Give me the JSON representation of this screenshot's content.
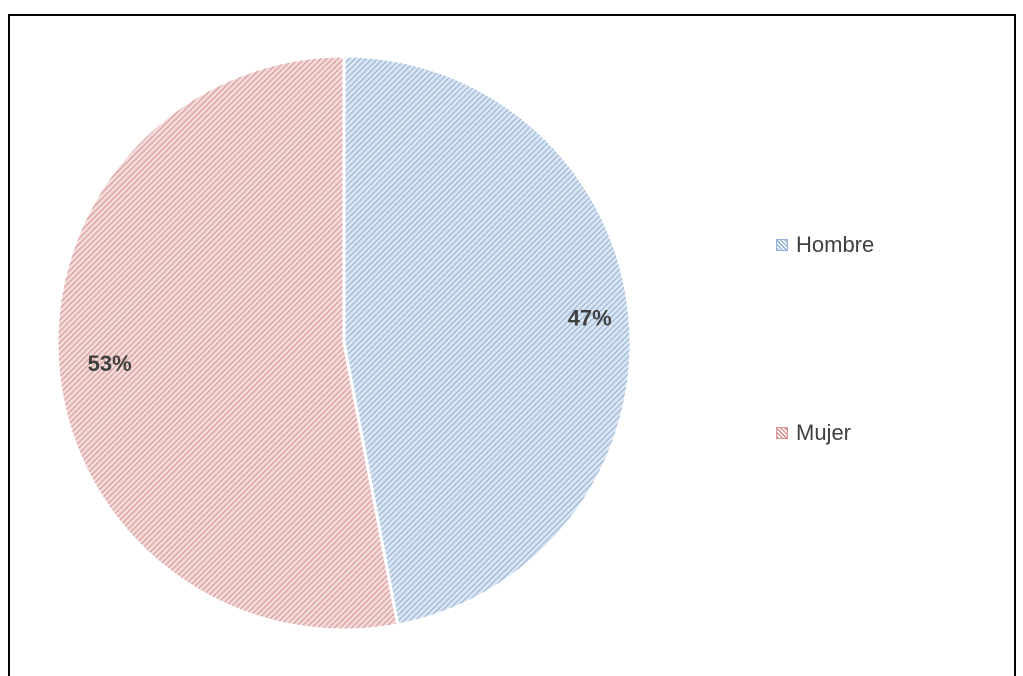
{
  "chart_data": {
    "type": "pie",
    "title": "",
    "categories": [
      "Hombre",
      "Mujer"
    ],
    "values": [
      47,
      53
    ],
    "data_labels": [
      "47%",
      "53%"
    ],
    "colors": [
      "#95B3D7",
      "#D99694"
    ],
    "legend": {
      "position": "right",
      "entries": [
        "Hombre",
        "Mujer"
      ]
    }
  }
}
